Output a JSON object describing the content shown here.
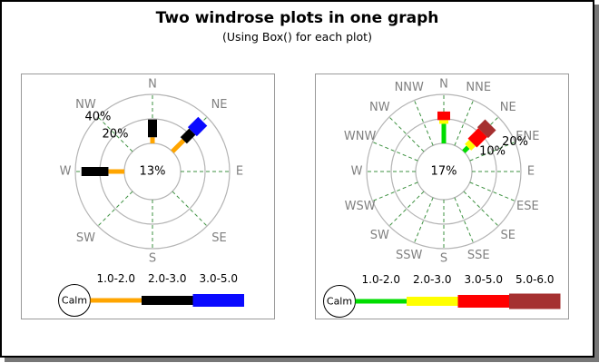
{
  "header": {
    "title": "Two windrose plots in one graph",
    "subtitle": "(Using Box() for each plot)"
  },
  "colors": {
    "frame_border": "#000000",
    "frame_shadow": "#777777",
    "panel_border": "#999999",
    "ring_stroke": "#b4b4b4",
    "radial_stroke": "#3d9140",
    "direction_label": "#808080",
    "text": "#000000"
  },
  "chart_data": [
    {
      "type": "windrose",
      "position": "left",
      "directions": [
        "N",
        "NE",
        "E",
        "SE",
        "S",
        "SW",
        "W",
        "NW"
      ],
      "ring_labels": [
        {
          "percent": 20,
          "label": "20%"
        },
        {
          "percent": 40,
          "label": "40%"
        }
      ],
      "ring_label_direction": "NW",
      "calm_percent_label": "13%",
      "speed_bins": [
        {
          "label": "1.0-2.0",
          "color": "#FFA500"
        },
        {
          "label": "2.0-3.0",
          "color": "#000000"
        },
        {
          "label": "3.0-5.0",
          "color": "#0A0AFF"
        }
      ],
      "bars": [
        {
          "direction": "N",
          "segment_percents": [
            5,
            14.5,
            0
          ]
        },
        {
          "direction": "NE",
          "segment_percents": [
            13,
            10,
            12
          ]
        },
        {
          "direction": "W",
          "segment_percents": [
            13,
            22,
            0
          ]
        }
      ],
      "legend": {
        "calm_label": "Calm"
      }
    },
    {
      "type": "windrose",
      "position": "right",
      "directions": [
        "N",
        "NNE",
        "NE",
        "ENE",
        "E",
        "ESE",
        "SE",
        "SSE",
        "S",
        "SSW",
        "SW",
        "WSW",
        "W",
        "WNW",
        "NW",
        "NNW"
      ],
      "ring_labels": [
        {
          "percent": 10,
          "label": "10%"
        },
        {
          "percent": 20,
          "label": "20%"
        }
      ],
      "ring_label_direction": "ENE",
      "calm_percent_label": "17%",
      "speed_bins": [
        {
          "label": "1.0-2.0",
          "color": "#00DD00"
        },
        {
          "label": "2.0-3.0",
          "color": "#FFFF00"
        },
        {
          "label": "3.0-5.0",
          "color": "#FF0000"
        },
        {
          "label": "5.0-6.0",
          "color": "#A53030"
        }
      ],
      "bars": [
        {
          "direction": "N",
          "segment_percents": [
            8,
            1.5,
            3.5,
            0
          ]
        },
        {
          "direction": "NE",
          "segment_percents": [
            2.5,
            2.5,
            6,
            4.5
          ]
        }
      ],
      "legend": {
        "calm_label": "Calm"
      }
    }
  ]
}
